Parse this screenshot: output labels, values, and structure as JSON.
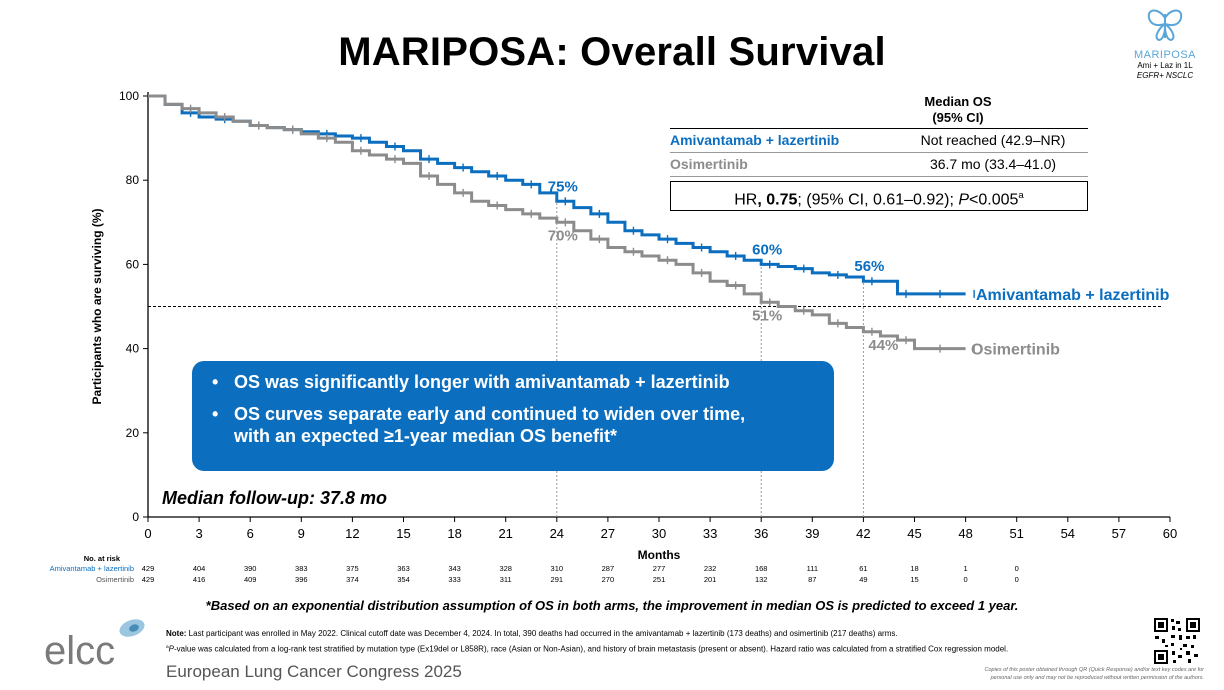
{
  "title": "MARIPOSA: Overall Survival",
  "brand": {
    "name": "MARIPOSA",
    "sub1": "Ami + Laz in 1L",
    "sub2": "EGFR+ NSCLC"
  },
  "colors": {
    "ami": "#0b6ebf",
    "osi": "#8c8c8c",
    "callout": "#0b6ebf"
  },
  "legend_table": {
    "header_line1": "Median OS",
    "header_line2": "(95% CI)",
    "rows": [
      {
        "arm": "Amivantamab + lazertinib",
        "value": "Not reached (42.9–NR)"
      },
      {
        "arm": "Osimertinib",
        "value": "36.7 mo (33.4–41.0)"
      }
    ],
    "hr_prefix": "HR",
    "hr_value": ", 0.75",
    "hr_ci": "; (95% CI, 0.61–0.92); ",
    "hr_p": "P",
    "hr_p_value": "<0.005",
    "hr_sup": "a"
  },
  "callout": {
    "bullet": "•",
    "point1": "OS was significantly longer with amivantamab + lazertinib",
    "point2a": "OS curves separate early and continued to widen over time,",
    "point2b": "with an expected ≥1-year median OS benefit*"
  },
  "followup": "Median follow-up: 37.8 mo",
  "chart_data": {
    "type": "line",
    "xlabel": "Months",
    "ylabel": "Participants who are surviving (%)",
    "xlim": [
      0,
      60
    ],
    "ylim": [
      0,
      100
    ],
    "xticks": [
      "0",
      "3",
      "6",
      "9",
      "12",
      "15",
      "18",
      "21",
      "24",
      "27",
      "30",
      "33",
      "36",
      "39",
      "42",
      "45",
      "48",
      "51",
      "54",
      "57",
      "60"
    ],
    "yticks": [
      "0",
      "20",
      "40",
      "60",
      "80",
      "100"
    ],
    "median_line_y": 50,
    "series": [
      {
        "name": "Amivantamab + lazertinib",
        "color": "#0b6ebf",
        "x": [
          0,
          1,
          2,
          3,
          4,
          5,
          6,
          7,
          8,
          9,
          10,
          11,
          12,
          13,
          14,
          15,
          16,
          17,
          18,
          19,
          20,
          21,
          22,
          23,
          24,
          25,
          26,
          27,
          28,
          29,
          30,
          31,
          32,
          33,
          34,
          35,
          36,
          37,
          38,
          39,
          40,
          41,
          42,
          43,
          44,
          45,
          46,
          47,
          48
        ],
        "y": [
          100,
          98,
          96,
          95,
          94.5,
          94,
          93,
          92.5,
          92,
          91.5,
          91,
          90.5,
          90,
          89,
          88,
          87,
          85,
          84,
          83,
          82,
          81,
          80,
          79,
          77,
          75,
          73.5,
          72,
          70,
          68,
          67,
          66,
          65,
          64,
          63,
          62,
          61,
          60,
          59.5,
          59,
          58,
          57.5,
          57,
          56,
          56,
          53,
          53,
          53,
          53,
          53
        ]
      },
      {
        "name": "Osimertinib",
        "color": "#8c8c8c",
        "x": [
          0,
          1,
          2,
          3,
          4,
          5,
          6,
          7,
          8,
          9,
          10,
          11,
          12,
          13,
          14,
          15,
          16,
          17,
          18,
          19,
          20,
          21,
          22,
          23,
          24,
          25,
          26,
          27,
          28,
          29,
          30,
          31,
          32,
          33,
          34,
          35,
          36,
          37,
          38,
          39,
          40,
          41,
          42,
          43,
          44,
          45,
          46,
          47,
          48
        ],
        "y": [
          100,
          98,
          97,
          96,
          95,
          94,
          93,
          92.5,
          92,
          91,
          90,
          89,
          87,
          86,
          85,
          84,
          81,
          79,
          77,
          75,
          74,
          73,
          72,
          71,
          70,
          68,
          66,
          64,
          63,
          62,
          61,
          60,
          58,
          56,
          55,
          53,
          51,
          50,
          49,
          48,
          46,
          45,
          44,
          43,
          42,
          40,
          40,
          40,
          40
        ]
      }
    ],
    "annotations": [
      {
        "text": "75%",
        "x": 24,
        "y": 75,
        "series": "Amivantamab + lazertinib"
      },
      {
        "text": "60%",
        "x": 36,
        "y": 60,
        "series": "Amivantamab + lazertinib"
      },
      {
        "text": "56%",
        "x": 42,
        "y": 56,
        "series": "Amivantamab + lazertinib"
      },
      {
        "text": "70%",
        "x": 24,
        "y": 70,
        "series": "Osimertinib"
      },
      {
        "text": "51%",
        "x": 36,
        "y": 51,
        "series": "Osimertinib"
      },
      {
        "text": "44%",
        "x": 42,
        "y": 44,
        "series": "Osimertinib"
      }
    ],
    "series_labels": [
      "Amivantamab + lazertinib",
      "Osimertinib"
    ],
    "at_risk": {
      "title": "No. at risk",
      "rows": [
        {
          "name": "Amivantamab + lazertinib",
          "values": [
            "429",
            "404",
            "390",
            "383",
            "375",
            "363",
            "343",
            "328",
            "310",
            "287",
            "277",
            "232",
            "168",
            "111",
            "61",
            "18",
            "1",
            "0"
          ]
        },
        {
          "name": "Osimertinib",
          "values": [
            "429",
            "416",
            "409",
            "396",
            "374",
            "354",
            "333",
            "311",
            "291",
            "270",
            "251",
            "201",
            "132",
            "87",
            "49",
            "15",
            "0",
            "0"
          ]
        }
      ]
    }
  },
  "footnote_main": "*Based on an exponential distribution assumption of OS in both arms, the improvement in median OS is predicted to exceed 1 year.",
  "notes": {
    "note_label": "Note:",
    "note_text": " Last participant was enrolled in May 2022. Clinical cutoff date was December 4, 2024. In total, 390 deaths had occurred in the amivantamab + lazertinib (173 deaths) and osimertinib (217 deaths) arms.",
    "note_a_sup": "a",
    "note_a_p": "P",
    "note_a_text": "-value was calculated from a log-rank test stratified by mutation type (Ex19del or L858R), race (Asian or Non-Asian), and history of brain metastasis (present or absent). Hazard ratio was calculated from a stratified Cox regression model."
  },
  "footer": {
    "logo_text": "elcc",
    "congress": "European Lung Cancer Congress 2025",
    "disclaimer": "Copies of this poster obtained through QR (Quick Response) and/or text key codes are for personal use only and may not be reproduced without written permission of the authors."
  }
}
